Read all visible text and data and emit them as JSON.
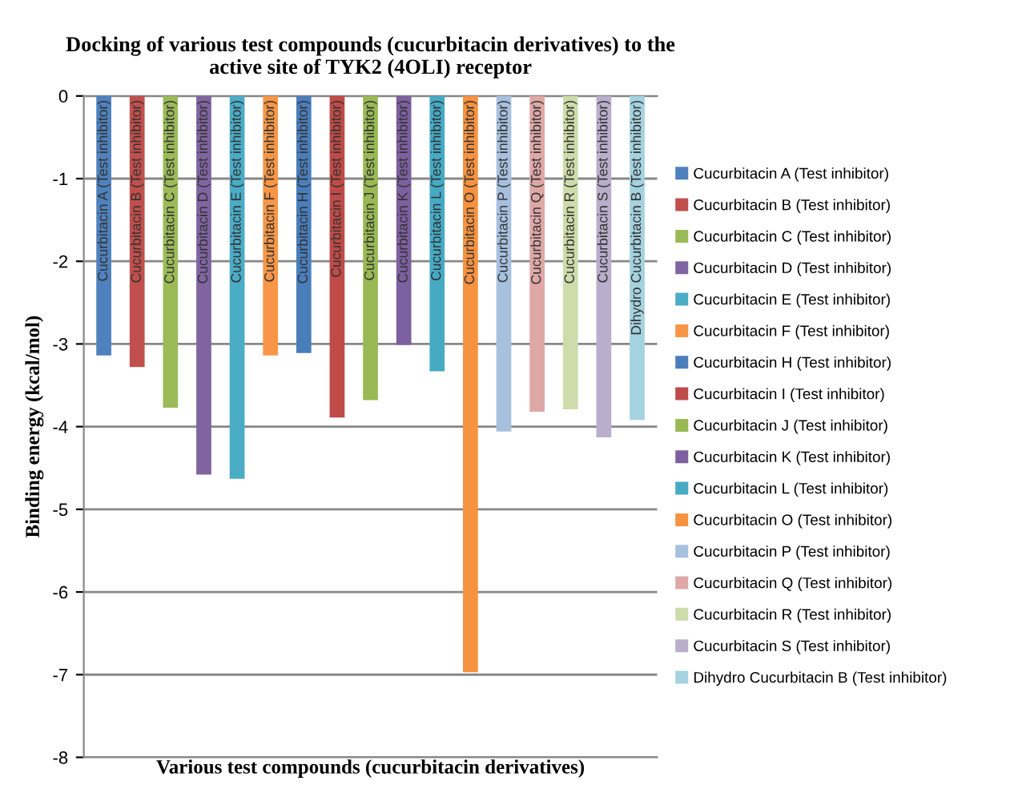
{
  "chart_data": {
    "type": "bar",
    "title": "Docking of various test compounds (cucurbitacin derivatives) to the\nactive site of TYK2 (4OLI) receptor",
    "xlabel": "Various test compounds (cucurbitacin derivatives)",
    "ylabel": "Binding energy (kcal/mol)",
    "categories": [
      null
    ],
    "series": [
      {
        "name": "Cucurbitacin A (Test inhibitor)",
        "color": "#4f81bd",
        "values": [
          -3.14
        ]
      },
      {
        "name": "Cucurbitacin B (Test inhibitor)",
        "color": "#c0504d",
        "values": [
          -3.28
        ]
      },
      {
        "name": "Cucurbitacin C (Test inhibitor)",
        "color": "#9bbb59",
        "values": [
          -3.77
        ]
      },
      {
        "name": "Cucurbitacin D (Test inhibitor)",
        "color": "#8064a2",
        "values": [
          -4.58
        ]
      },
      {
        "name": "Cucurbitacin E (Test inhibitor)",
        "color": "#4bacc6",
        "values": [
          -4.63
        ]
      },
      {
        "name": "Cucurbitacin F (Test inhibitor)",
        "color": "#f79646",
        "values": [
          -3.14
        ]
      },
      {
        "name": "Cucurbitacin H (Test inhibitor)",
        "color": "#4a7ebb",
        "values": [
          -3.11
        ]
      },
      {
        "name": "Cucurbitacin I (Test inhibitor)",
        "color": "#be4b48",
        "values": [
          -3.89
        ]
      },
      {
        "name": "Cucurbitacin J (Test inhibitor)",
        "color": "#98b954",
        "values": [
          -3.68
        ]
      },
      {
        "name": "Cucurbitacin K (Test inhibitor)",
        "color": "#7d60a0",
        "values": [
          -3.01
        ]
      },
      {
        "name": "Cucurbitacin L (Test inhibitor)",
        "color": "#46aac5",
        "values": [
          -3.33
        ]
      },
      {
        "name": "Cucurbitacin O (Test inhibitor)",
        "color": "#f69240",
        "values": [
          -6.97
        ]
      },
      {
        "name": "Cucurbitacin P (Test inhibitor)",
        "color": "#a7c0de",
        "values": [
          -4.06
        ]
      },
      {
        "name": "Cucurbitacin Q (Test inhibitor)",
        "color": "#dea8a7",
        "values": [
          -3.82
        ]
      },
      {
        "name": "Cucurbitacin R (Test inhibitor)",
        "color": "#cddcaa",
        "values": [
          -3.79
        ]
      },
      {
        "name": "Cucurbitacin S (Test inhibitor)",
        "color": "#b9aecb",
        "values": [
          -4.13
        ]
      },
      {
        "name": "Dihydro Cucurbitacin B (Test inhibitor)",
        "color": "#a5d2df",
        "values": [
          -3.92
        ]
      }
    ],
    "ylim": [
      -8,
      0
    ],
    "yticks": [
      0,
      {
        "value": -1,
        "label": "-1"
      },
      {
        "value": -2,
        "label": "-2"
      },
      {
        "value": -3,
        "label": "-3"
      },
      {
        "value": -4,
        "label": "-4"
      },
      {
        "value": -5,
        "label": "-5"
      },
      {
        "value": -6,
        "label": "-6"
      },
      {
        "value": -7,
        "label": "-7"
      },
      {
        "value": -8,
        "label": "-8"
      }
    ],
    "grid": "y",
    "legend": "right"
  }
}
